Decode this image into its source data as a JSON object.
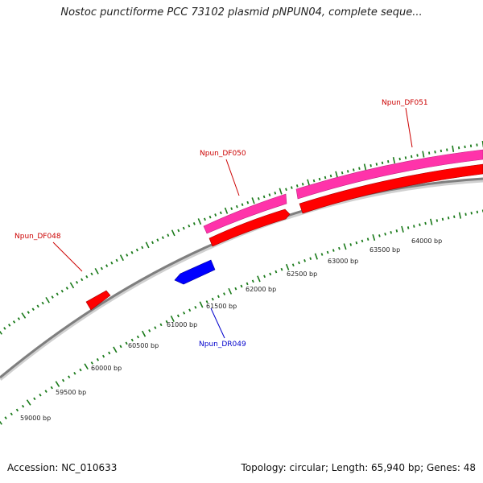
{
  "title": "Nostoc punctiforme PCC 73102 plasmid pNPUN04, complete seque...",
  "footer": {
    "accession": "Accession: NC_010633",
    "summary": "Topology: circular; Length: 65,940 bp; Genes: 48"
  },
  "colors": {
    "backbone": "#7f7f7f",
    "ticks": "#1a7a1a",
    "forward_gene": "#ff0000",
    "reverse_gene": "#0000ff",
    "outer_feature": "#ff33aa",
    "forward_label": "#cc0000",
    "reverse_label": "#0000cc"
  },
  "scale_labels": [
    "59000 bp",
    "59500 bp",
    "60000 bp",
    "60500 bp",
    "61000 bp",
    "61500 bp",
    "62000 bp",
    "62500 bp",
    "63000 bp",
    "63500 bp",
    "64000 bp"
  ],
  "genes": [
    {
      "label": "Npun_DF048",
      "strand": "forward"
    },
    {
      "label": "Npun_DR049",
      "strand": "reverse"
    },
    {
      "label": "Npun_DF050",
      "strand": "forward"
    },
    {
      "label": "Npun_DF051",
      "strand": "forward"
    }
  ]
}
